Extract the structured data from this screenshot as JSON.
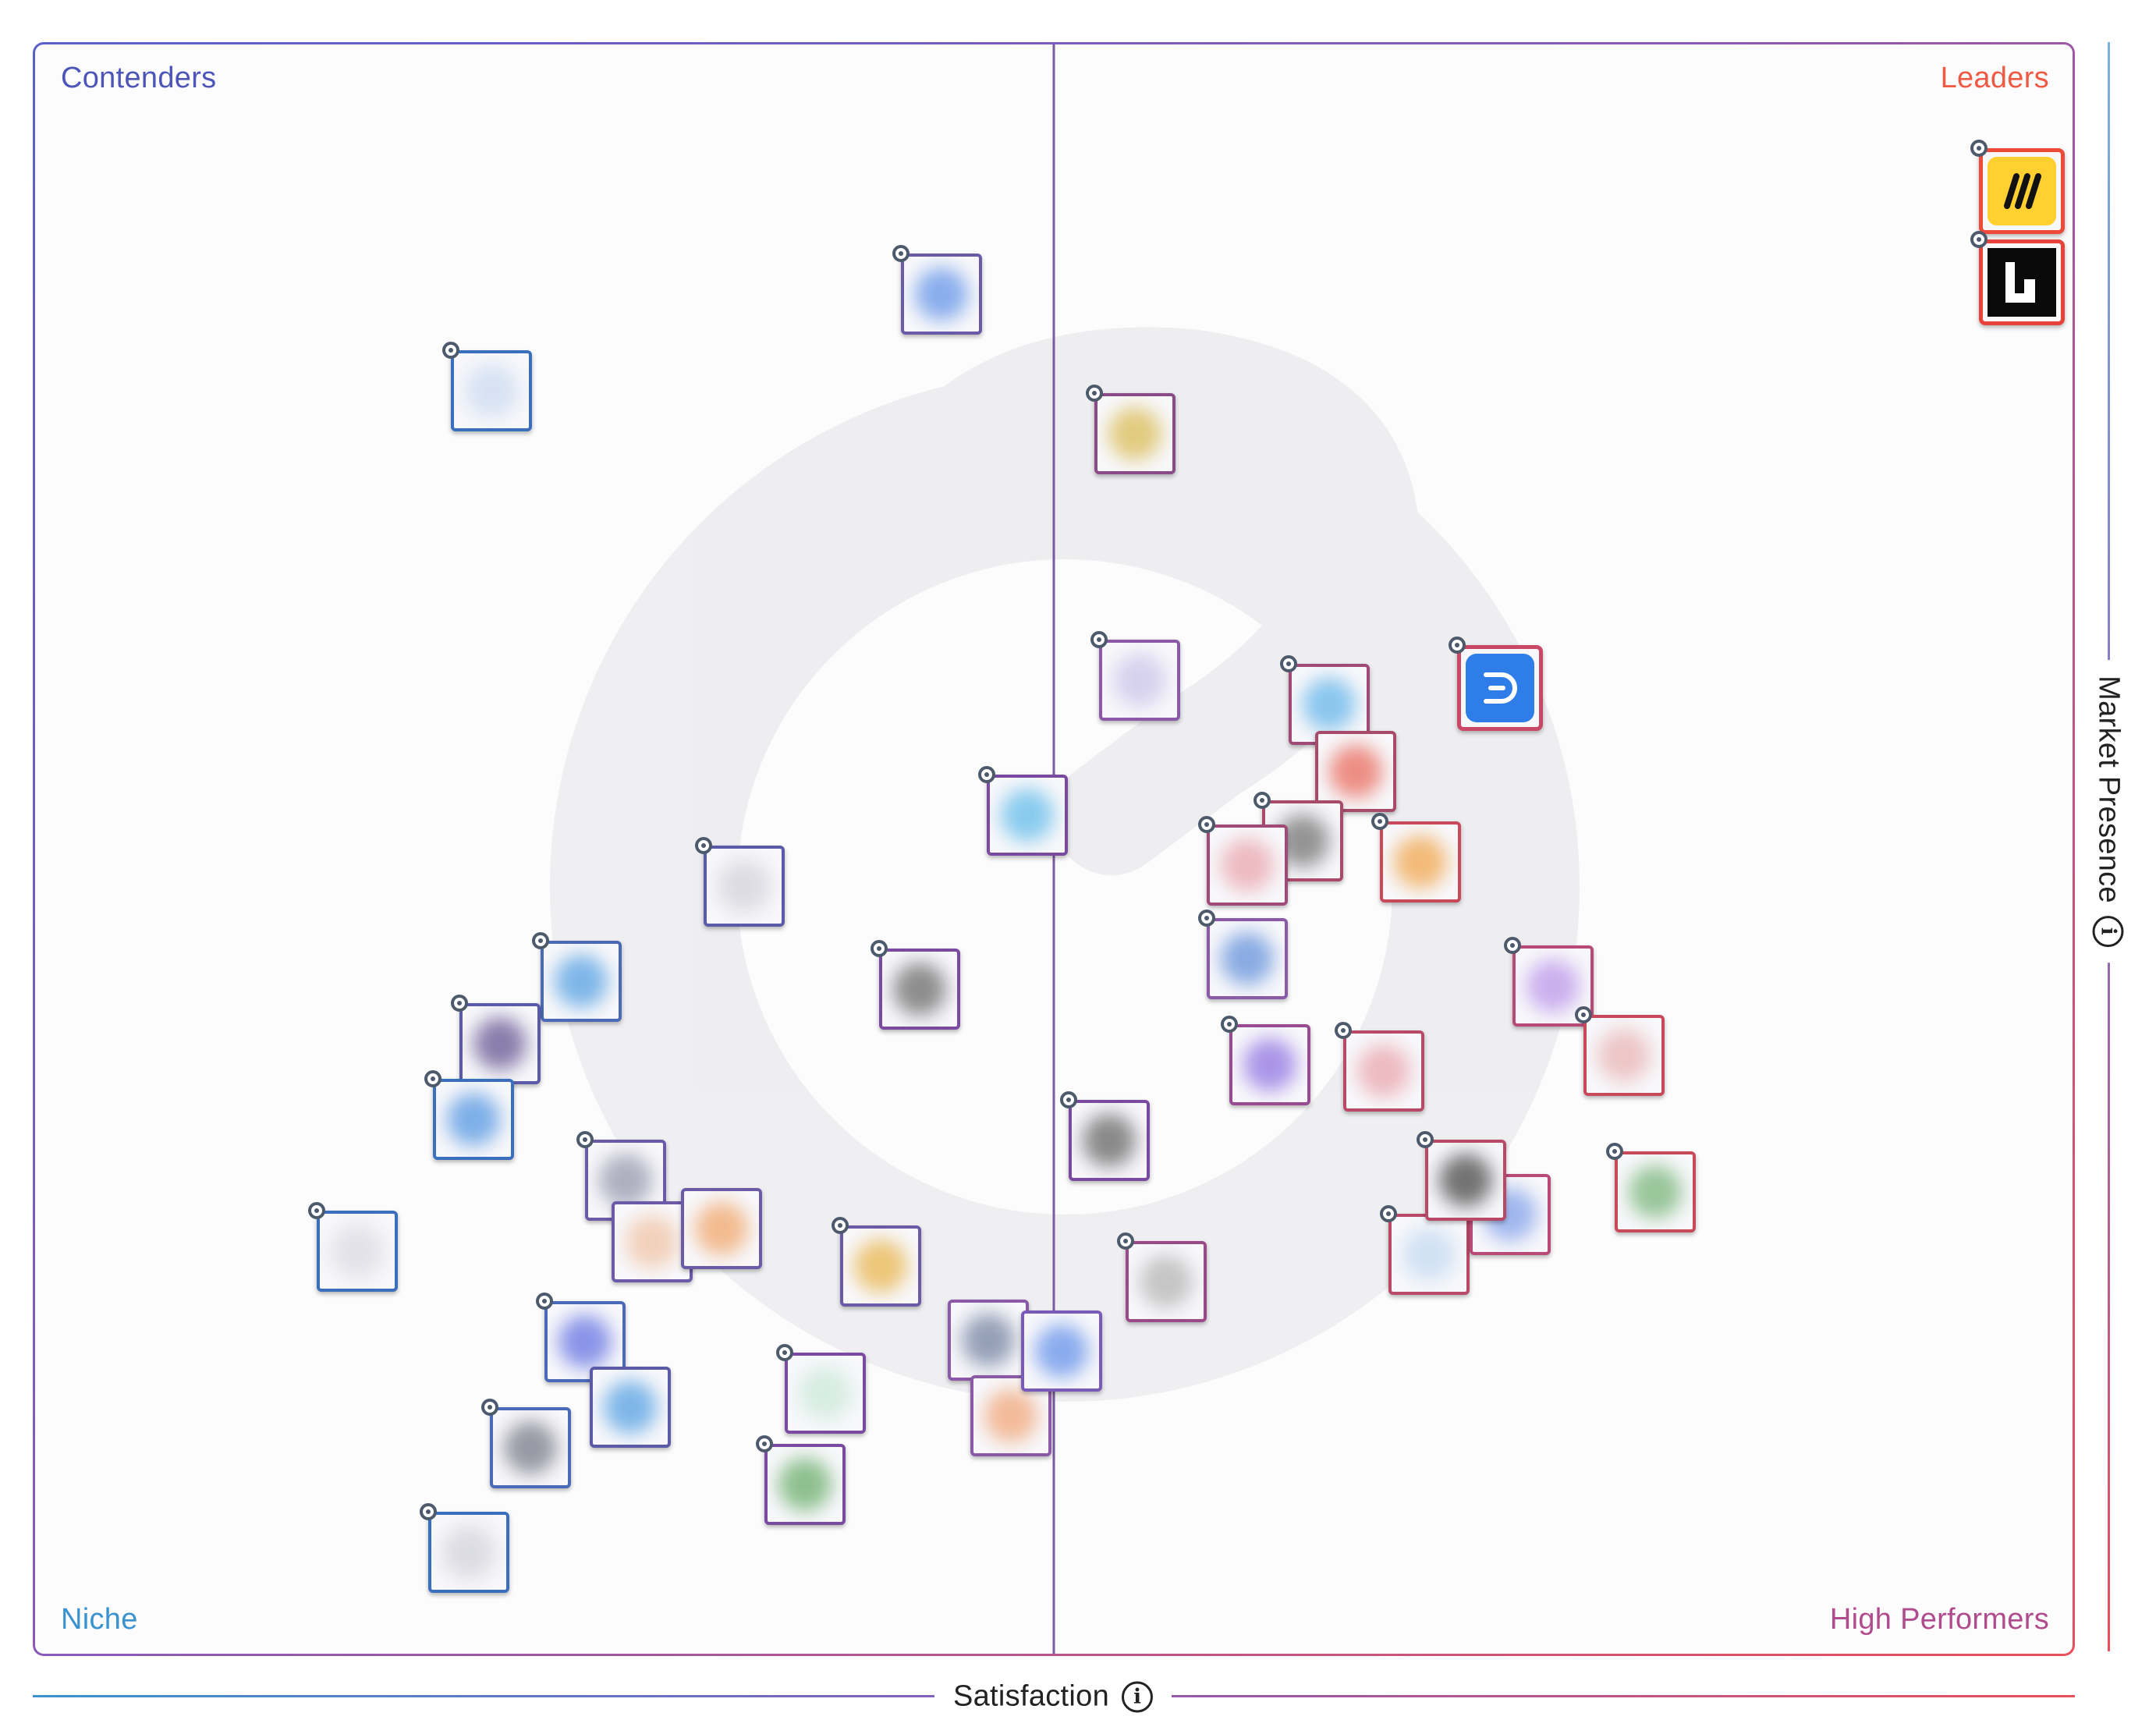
{
  "chart_data": {
    "type": "scatter",
    "title": "",
    "xlabel": "Satisfaction",
    "ylabel": "Market Presence",
    "quadrants": {
      "top_left": "Contenders",
      "top_right": "Leaders",
      "bottom_left": "Niche",
      "bottom_right": "High Performers"
    },
    "grid": true,
    "xlim": [
      0,
      100
    ],
    "ylim": [
      0,
      100
    ],
    "colors": {
      "contenders": "#4d56b8",
      "leaders": "#ee5a44",
      "niche": "#3a92cf",
      "high_performers": "#b04c8e"
    },
    "points": [
      {
        "x": 97.5,
        "y": 90.9,
        "border": "#ee4a3a",
        "fill": "#ffd02f",
        "featured": "miro",
        "pin": true
      },
      {
        "x": 97.5,
        "y": 85.2,
        "border": "#e8423a",
        "fill": "#0a0a0a",
        "featured": "lucid",
        "pin": true
      },
      {
        "x": 71.9,
        "y": 60.0,
        "border": "#c94866",
        "fill": "#2f7de8",
        "featured": "diagram",
        "pin": true
      },
      {
        "x": 44.5,
        "y": 84.5,
        "border": "#6a5aa8",
        "fill": "#5a8ee6",
        "pin": true
      },
      {
        "x": 22.4,
        "y": 78.5,
        "border": "#3a6fbe",
        "fill": "#c8d8f0",
        "pin": true
      },
      {
        "x": 54.0,
        "y": 75.8,
        "border": "#8a4a88",
        "fill": "#d8b84a",
        "pin": true
      },
      {
        "x": 54.2,
        "y": 60.5,
        "border": "#8a5aa8",
        "fill": "#c8c0e8",
        "pin": true
      },
      {
        "x": 63.5,
        "y": 59.0,
        "border": "#a04a78",
        "fill": "#5ab0e8",
        "pin": true
      },
      {
        "x": 64.8,
        "y": 54.8,
        "border": "#a84a6a",
        "fill": "#e86050",
        "pin": false
      },
      {
        "x": 62.2,
        "y": 50.5,
        "border": "#a84a6a",
        "fill": "#6a6a6a",
        "pin": true
      },
      {
        "x": 59.5,
        "y": 49.0,
        "border": "#a04a78",
        "fill": "#e8a0a8",
        "pin": true
      },
      {
        "x": 68.0,
        "y": 49.2,
        "border": "#c84a5a",
        "fill": "#f0a040",
        "pin": true
      },
      {
        "x": 48.7,
        "y": 52.1,
        "border": "#7a4aa0",
        "fill": "#5ab8e8",
        "pin": true
      },
      {
        "x": 34.8,
        "y": 47.7,
        "border": "#5a5aa8",
        "fill": "#d0d0d8",
        "pin": true
      },
      {
        "x": 59.5,
        "y": 43.2,
        "border": "#8a5aa8",
        "fill": "#5a8ad8",
        "pin": true
      },
      {
        "x": 43.4,
        "y": 41.3,
        "border": "#7a4aa0",
        "fill": "#606060",
        "pin": true
      },
      {
        "x": 26.8,
        "y": 41.8,
        "border": "#4a6ab8",
        "fill": "#4a9ae0",
        "pin": true
      },
      {
        "x": 22.8,
        "y": 37.9,
        "border": "#5a5aa8",
        "fill": "#5a4a8a",
        "pin": true
      },
      {
        "x": 21.5,
        "y": 33.2,
        "border": "#3a6fbe",
        "fill": "#4a90e0",
        "pin": true
      },
      {
        "x": 60.6,
        "y": 36.6,
        "border": "#9a4a90",
        "fill": "#8a6ae0",
        "pin": true
      },
      {
        "x": 66.2,
        "y": 36.2,
        "border": "#b84a68",
        "fill": "#e8a0a8",
        "pin": true
      },
      {
        "x": 74.5,
        "y": 41.5,
        "border": "#b84a78",
        "fill": "#b890e8",
        "pin": true
      },
      {
        "x": 78.0,
        "y": 37.2,
        "border": "#c84a5a",
        "fill": "#e8b0b0",
        "pin": true
      },
      {
        "x": 52.7,
        "y": 31.9,
        "border": "#7a4aa0",
        "fill": "#5a5a5a",
        "pin": true
      },
      {
        "x": 29.0,
        "y": 29.4,
        "border": "#6a5aa8",
        "fill": "#9090a8",
        "pin": true
      },
      {
        "x": 30.3,
        "y": 25.6,
        "border": "#6a5aa8",
        "fill": "#f0c0a0",
        "pin": false
      },
      {
        "x": 33.7,
        "y": 26.4,
        "border": "#6a5aa8",
        "fill": "#f0a060",
        "pin": false
      },
      {
        "x": 15.8,
        "y": 25.0,
        "border": "#3a6fbe",
        "fill": "#d8d8e0",
        "pin": true
      },
      {
        "x": 41.5,
        "y": 24.1,
        "border": "#6a5aa8",
        "fill": "#e8b040",
        "pin": true
      },
      {
        "x": 55.5,
        "y": 23.1,
        "border": "#9a4a88",
        "fill": "#b0b0b0",
        "pin": true
      },
      {
        "x": 68.4,
        "y": 24.8,
        "border": "#b84a68",
        "fill": "#c0d8f0",
        "pin": true
      },
      {
        "x": 72.4,
        "y": 27.3,
        "border": "#b84a78",
        "fill": "#7a9ae8",
        "pin": false
      },
      {
        "x": 70.2,
        "y": 29.4,
        "border": "#b84a68",
        "fill": "#3a3a3a",
        "pin": true
      },
      {
        "x": 79.5,
        "y": 28.7,
        "border": "#c84a5a",
        "fill": "#70b070",
        "pin": true
      },
      {
        "x": 27.0,
        "y": 19.4,
        "border": "#4a6ab8",
        "fill": "#5a6ae0",
        "pin": true
      },
      {
        "x": 29.2,
        "y": 15.3,
        "border": "#5a5aa8",
        "fill": "#4a9ae0",
        "pin": false
      },
      {
        "x": 24.3,
        "y": 12.8,
        "border": "#4a6ab8",
        "fill": "#707080",
        "pin": true
      },
      {
        "x": 38.8,
        "y": 16.2,
        "border": "#7a4aa0",
        "fill": "#c8e8d8",
        "pin": true
      },
      {
        "x": 37.8,
        "y": 10.5,
        "border": "#7a4aa0",
        "fill": "#60a860",
        "pin": true
      },
      {
        "x": 46.8,
        "y": 19.5,
        "border": "#8a5aa8",
        "fill": "#6a7a9a",
        "pin": false
      },
      {
        "x": 47.9,
        "y": 14.8,
        "border": "#8a5aa8",
        "fill": "#f0a070",
        "pin": false
      },
      {
        "x": 50.4,
        "y": 18.8,
        "border": "#7a5ab8",
        "fill": "#5a8ae8",
        "pin": false
      },
      {
        "x": 21.3,
        "y": 6.3,
        "border": "#3a6fbe",
        "fill": "#d0d0d8",
        "pin": true
      }
    ]
  }
}
